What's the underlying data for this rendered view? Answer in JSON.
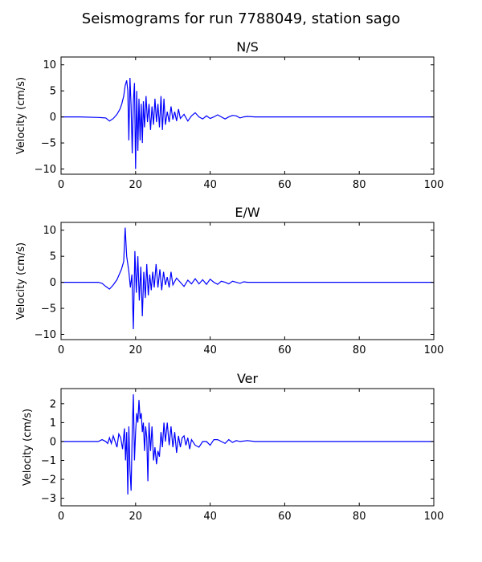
{
  "figure": {
    "title": "Seismograms for run 7788049, station sago"
  },
  "chart_data": [
    {
      "type": "line",
      "title": "N/S",
      "xlabel": "",
      "ylabel": "Velocity (cm/s)",
      "xlim": [
        0,
        100
      ],
      "ylim": [
        -11,
        11.5
      ],
      "xticks": [
        0,
        20,
        40,
        60,
        80,
        100
      ],
      "yticks": [
        -10,
        -5,
        0,
        5,
        10
      ],
      "grid": false,
      "color": "#0000ff",
      "series": [
        {
          "x": [
            0,
            5,
            10,
            12,
            13,
            14,
            15,
            15.8,
            16.3,
            16.8,
            17.2,
            17.6,
            17.9,
            18.2,
            18.5,
            18.8,
            19.1,
            19.4,
            19.7,
            20.0,
            20.3,
            20.6,
            20.9,
            21.2,
            21.5,
            21.8,
            22.1,
            22.4,
            22.8,
            23.2,
            23.6,
            24.0,
            24.4,
            24.8,
            25.2,
            25.6,
            26.0,
            26.4,
            26.8,
            27.2,
            27.6,
            28.0,
            28.5,
            29.0,
            29.5,
            30.0,
            30.5,
            31.0,
            31.5,
            32.0,
            33.0,
            34.0,
            35.0,
            36.0,
            37.0,
            38.0,
            39.0,
            40.0,
            41.0,
            42.0,
            43.0,
            44.0,
            45.0,
            46.0,
            47.0,
            48.0,
            49.0,
            50.0,
            52.0,
            54.0,
            56.0,
            58.0,
            60.0,
            70.0,
            80.0,
            90.0,
            100.0
          ],
          "y": [
            0,
            0,
            -0.1,
            -0.2,
            -0.8,
            -0.3,
            0.5,
            1.5,
            2.5,
            4.0,
            6.0,
            7.0,
            5.0,
            -4.5,
            7.5,
            2.0,
            -7.0,
            3.0,
            6.5,
            -10.0,
            5.0,
            -6.5,
            3.5,
            -4.5,
            2.5,
            -5.0,
            3.0,
            -2.0,
            4.0,
            -1.0,
            2.5,
            -2.5,
            2.0,
            -1.5,
            3.5,
            -1.0,
            2.5,
            -2.0,
            4.0,
            -2.5,
            3.5,
            -1.5,
            1.0,
            -1.0,
            2.0,
            -0.5,
            1.0,
            -0.8,
            1.5,
            -0.3,
            0.5,
            -0.8,
            0.2,
            0.8,
            0.0,
            -0.4,
            0.2,
            -0.3,
            0.0,
            0.4,
            0.0,
            -0.4,
            0.0,
            0.3,
            0.2,
            -0.2,
            0.0,
            0.1,
            0,
            0,
            0,
            0,
            0,
            0,
            0,
            0,
            0
          ]
        }
      ]
    },
    {
      "type": "line",
      "title": "E/W",
      "xlabel": "",
      "ylabel": "Velocity (cm/s)",
      "xlim": [
        0,
        100
      ],
      "ylim": [
        -11,
        11.5
      ],
      "xticks": [
        0,
        20,
        40,
        60,
        80,
        100
      ],
      "yticks": [
        -10,
        -5,
        0,
        5,
        10
      ],
      "grid": false,
      "color": "#0000ff",
      "series": [
        {
          "x": [
            0,
            5,
            10,
            11,
            12,
            13,
            14,
            15,
            15.6,
            16.2,
            16.8,
            17.2,
            17.6,
            17.9,
            18.2,
            18.6,
            19.0,
            19.4,
            19.8,
            20.2,
            20.6,
            21.0,
            21.4,
            21.8,
            22.2,
            22.6,
            23.0,
            23.4,
            23.8,
            24.2,
            24.6,
            25.0,
            25.5,
            26.0,
            26.5,
            27.0,
            27.5,
            28.0,
            28.5,
            29.0,
            29.5,
            30.0,
            31.0,
            32.0,
            33.0,
            34.0,
            35.0,
            36.0,
            37.0,
            38.0,
            39.0,
            40.0,
            41.0,
            42.0,
            43.0,
            44.0,
            45.0,
            46.0,
            47.0,
            48.0,
            49.0,
            50.0,
            52.0,
            55.0,
            60.0,
            70.0,
            80.0,
            90.0,
            100.0
          ],
          "y": [
            0,
            0,
            0,
            -0.2,
            -0.8,
            -1.3,
            -0.5,
            0.5,
            1.5,
            2.5,
            4.0,
            10.5,
            5.0,
            3.5,
            2.0,
            -1.0,
            1.5,
            -9.0,
            6.0,
            -2.0,
            5.0,
            -3.5,
            3.0,
            -6.5,
            2.0,
            -3.0,
            3.5,
            -2.5,
            1.5,
            -1.5,
            2.0,
            -1.0,
            3.5,
            -1.0,
            2.5,
            -1.5,
            2.0,
            -0.5,
            1.0,
            -1.0,
            2.0,
            -0.5,
            0.8,
            0.0,
            -0.8,
            0.4,
            -0.3,
            0.7,
            -0.3,
            0.5,
            -0.4,
            0.6,
            0.0,
            -0.4,
            0.2,
            0.0,
            -0.3,
            0.2,
            0.0,
            -0.2,
            0.1,
            0.0,
            0,
            0,
            0,
            0,
            0,
            0,
            0
          ]
        }
      ]
    },
    {
      "type": "line",
      "title": "Ver",
      "xlabel": "",
      "ylabel": "Velocity (cm/s)",
      "xlim": [
        0,
        100
      ],
      "ylim": [
        -3.4,
        2.8
      ],
      "xticks": [
        0,
        20,
        40,
        60,
        80,
        100
      ],
      "yticks": [
        -3,
        -2,
        -1,
        0,
        1,
        2
      ],
      "grid": false,
      "color": "#0000ff",
      "series": [
        {
          "x": [
            0,
            5,
            10,
            11,
            12,
            12.5,
            13,
            13.5,
            14,
            14.5,
            15,
            15.5,
            16,
            16.5,
            17,
            17.3,
            17.6,
            17.9,
            18.2,
            18.5,
            18.8,
            19.1,
            19.4,
            19.7,
            20.0,
            20.3,
            20.6,
            20.9,
            21.2,
            21.5,
            21.8,
            22.1,
            22.4,
            22.7,
            23.0,
            23.3,
            23.6,
            24.0,
            24.4,
            24.8,
            25.2,
            25.6,
            26.0,
            26.4,
            26.8,
            27.2,
            27.6,
            28.0,
            28.5,
            29.0,
            29.5,
            30.0,
            30.5,
            31.0,
            31.5,
            32.0,
            32.5,
            33.0,
            33.5,
            34.0,
            34.5,
            35.0,
            36.0,
            37.0,
            38.0,
            39.0,
            40.0,
            41.0,
            42.0,
            43.0,
            44.0,
            45.0,
            46.0,
            47.0,
            48.0,
            50.0,
            52.0,
            55.0,
            60.0,
            70.0,
            80.0,
            90.0,
            100.0
          ],
          "y": [
            0,
            0,
            0,
            0.1,
            0.0,
            -0.1,
            0.2,
            -0.1,
            0.3,
            0.0,
            -0.3,
            0.4,
            0.2,
            -0.4,
            0.7,
            -1.0,
            0.5,
            -2.8,
            0.8,
            -1.5,
            -2.6,
            0.5,
            2.5,
            -1.0,
            0.5,
            1.5,
            1.0,
            2.2,
            1.2,
            1.5,
            0.5,
            1.0,
            -0.5,
            0.8,
            0.2,
            -2.1,
            1.0,
            -0.5,
            0.8,
            -1.0,
            -0.3,
            -1.2,
            -0.5,
            -0.8,
            0.5,
            -0.3,
            1.0,
            0.0,
            1.0,
            -0.2,
            0.8,
            -0.3,
            0.5,
            -0.6,
            0.3,
            -0.3,
            0.2,
            0.3,
            -0.2,
            0.2,
            -0.4,
            0.1,
            -0.2,
            -0.3,
            0.0,
            0.0,
            -0.2,
            0.1,
            0.1,
            0.0,
            -0.1,
            0.1,
            -0.05,
            0.05,
            0.0,
            0.05,
            0.0,
            0.0,
            0,
            0,
            0,
            0,
            0
          ]
        }
      ]
    }
  ]
}
